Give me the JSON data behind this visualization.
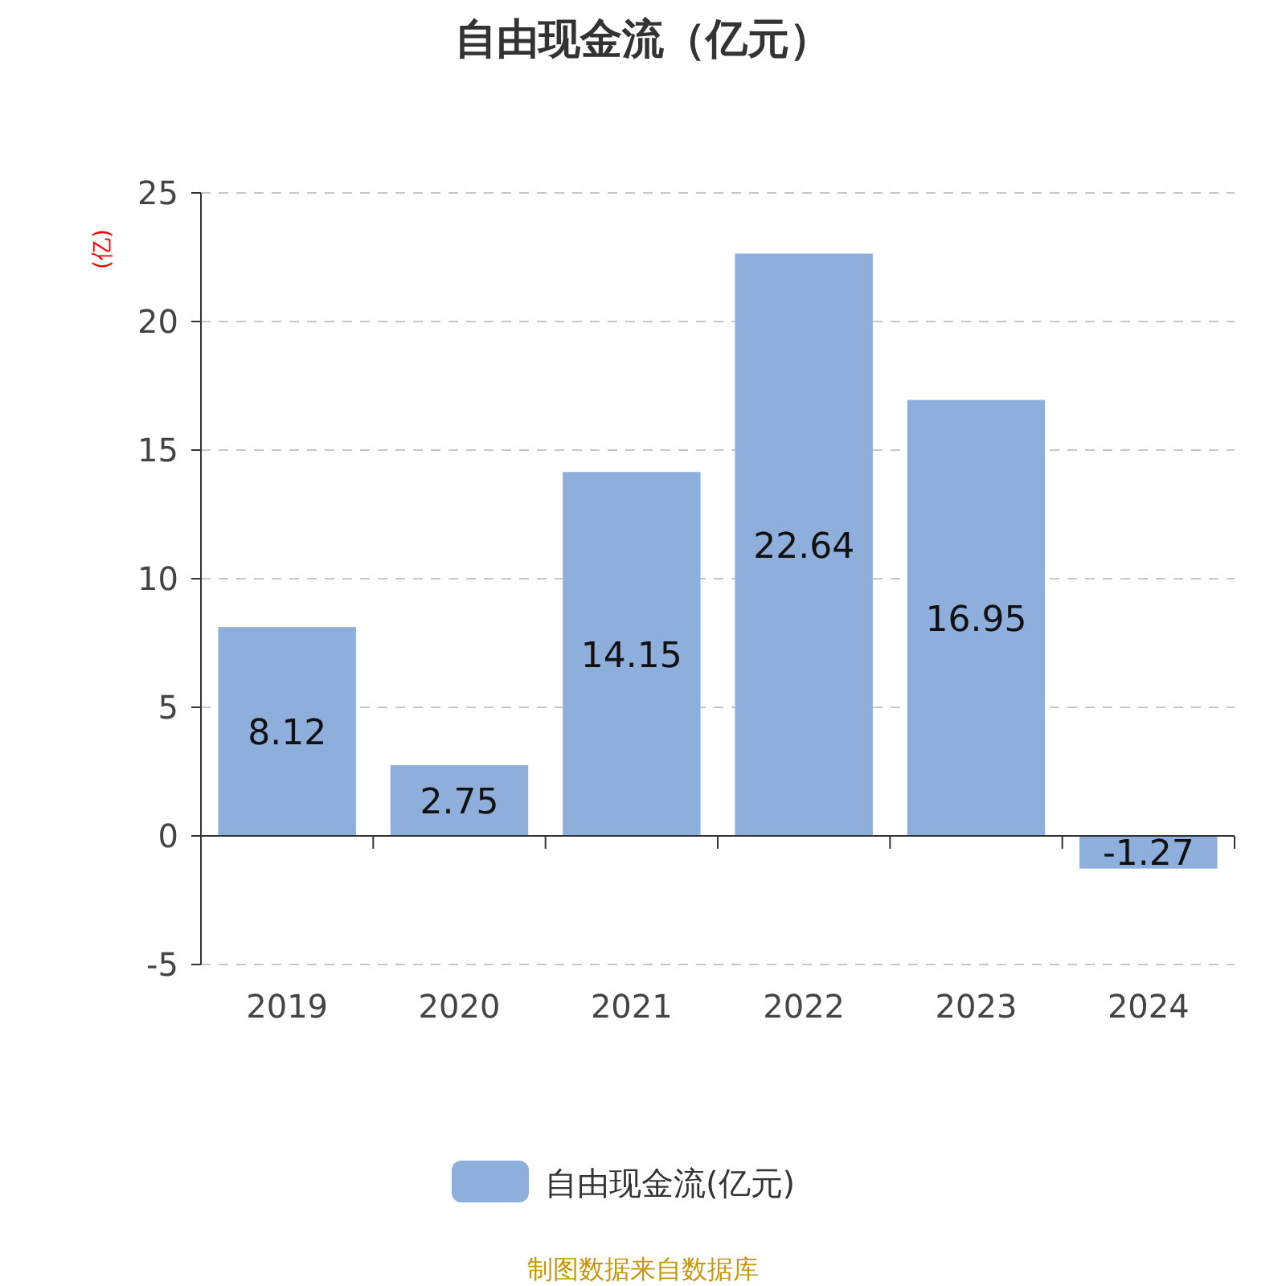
{
  "chart_data": {
    "type": "bar",
    "title": "自由现金流（亿元）",
    "ylabel": "(亿)",
    "categories": [
      "2019",
      "2020",
      "2021",
      "2022",
      "2023",
      "2024"
    ],
    "series": [
      {
        "name": "自由现金流(亿元)",
        "color": "#8eaedb",
        "values": [
          8.12,
          2.75,
          14.15,
          22.64,
          16.95,
          -1.27
        ]
      }
    ],
    "ylim": [
      -5,
      25
    ],
    "yticks": [
      -5,
      0,
      5,
      10,
      15,
      20,
      25
    ],
    "grid": "y",
    "legend": "bottom",
    "data_labels": true,
    "annotations": [
      "制图数据来自数据库"
    ]
  }
}
